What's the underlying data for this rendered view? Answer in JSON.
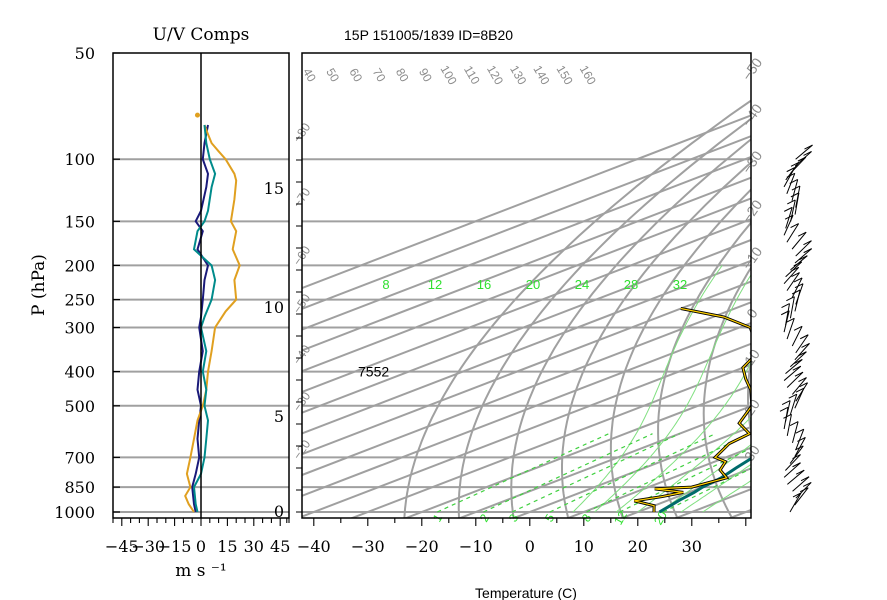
{
  "chart_data": [
    {
      "type": "line",
      "title": "U/V Comps",
      "xlabel": "m s ⁻¹",
      "ylabel": "P (hPa)",
      "xlim": [
        -50,
        50
      ],
      "x_ticks": [
        "−45",
        "−30",
        "−15",
        "0",
        "15",
        "30",
        "45"
      ],
      "x_tick_values": [
        -45,
        -30,
        -15,
        0,
        15,
        30,
        45
      ],
      "y_ticks": [
        "50",
        "100",
        "150",
        "200",
        "250",
        "300",
        "400",
        "500",
        "700",
        "850",
        "1000"
      ],
      "y_tick_values": [
        50,
        100,
        150,
        200,
        250,
        300,
        400,
        500,
        700,
        850,
        1000
      ],
      "y_scale": "log",
      "ylim": [
        1000,
        50
      ],
      "grid": true,
      "series": [
        {
          "color": "#1a1a7a",
          "points": [
            [
              -3,
              1000
            ],
            [
              -4,
              950
            ],
            [
              -5,
              850
            ],
            [
              -3,
              780
            ],
            [
              -1,
              700
            ],
            [
              -2,
              620
            ],
            [
              -1,
              550
            ],
            [
              0,
              500
            ],
            [
              -2,
              450
            ],
            [
              -1,
              400
            ],
            [
              1,
              350
            ],
            [
              -1,
              300
            ],
            [
              0,
              280
            ],
            [
              1,
              250
            ],
            [
              2,
              220
            ],
            [
              4,
              200
            ],
            [
              -2,
              180
            ],
            [
              1,
              160
            ],
            [
              -3,
              150
            ],
            [
              0,
              140
            ],
            [
              3,
              120
            ],
            [
              4,
              110
            ],
            [
              1,
              100
            ],
            [
              2,
              90
            ],
            [
              4,
              80
            ]
          ]
        },
        {
          "color": "#e0a020",
          "points": [
            [
              -4,
              1000
            ],
            [
              -7,
              950
            ],
            [
              -9,
              900
            ],
            [
              -6,
              850
            ],
            [
              -8,
              780
            ],
            [
              -6,
              700
            ],
            [
              -4,
              620
            ],
            [
              -2,
              550
            ],
            [
              1,
              500
            ],
            [
              3,
              450
            ],
            [
              4,
              400
            ],
            [
              6,
              350
            ],
            [
              8,
              300
            ],
            [
              14,
              270
            ],
            [
              20,
              250
            ],
            [
              19,
              220
            ],
            [
              22,
              200
            ],
            [
              18,
              180
            ],
            [
              20,
              160
            ],
            [
              17,
              150
            ],
            [
              19,
              130
            ],
            [
              20,
              115
            ],
            [
              19,
              110
            ],
            [
              14,
              100
            ],
            [
              10,
              95
            ],
            [
              6,
              90
            ],
            [
              4,
              85
            ],
            [
              2,
              80
            ]
          ]
        },
        {
          "color": "#008b8b",
          "points": [
            [
              -2,
              1000
            ],
            [
              -3,
              950
            ],
            [
              -4,
              850
            ],
            [
              0,
              780
            ],
            [
              2,
              700
            ],
            [
              3,
              620
            ],
            [
              4,
              550
            ],
            [
              2,
              500
            ],
            [
              3,
              450
            ],
            [
              1,
              400
            ],
            [
              3,
              350
            ],
            [
              0,
              300
            ],
            [
              2,
              280
            ],
            [
              6,
              250
            ],
            [
              8,
              220
            ],
            [
              6,
              200
            ],
            [
              -4,
              180
            ],
            [
              -2,
              160
            ],
            [
              2,
              150
            ],
            [
              4,
              140
            ],
            [
              6,
              120
            ],
            [
              8,
              110
            ],
            [
              5,
              100
            ],
            [
              3,
              90
            ],
            [
              2,
              80
            ]
          ]
        }
      ]
    },
    {
      "type": "line",
      "title": "15P 151005/1839 ID=8B20",
      "xlabel": "Temperature (C)",
      "xlim": [
        -45,
        40
      ],
      "x_ticks": [
        "−40",
        "−30",
        "−20",
        "−10",
        "0",
        "10",
        "20",
        "30"
      ],
      "x_tick_values": [
        -40,
        -30,
        -20,
        -10,
        0,
        10,
        20,
        30
      ],
      "y_ticks": [
        "0",
        "5",
        "10",
        "15"
      ],
      "y_tick_values": [
        0,
        5,
        10,
        15
      ],
      "isotherm_labels": [
        "−50",
        "−40",
        "−30",
        "−20",
        "−10",
        "0",
        "10",
        "20",
        "30"
      ],
      "isotherm_values": [
        -50,
        -40,
        -30,
        -20,
        -10,
        0,
        10,
        20,
        30
      ],
      "theta_labels": [
        "40",
        "50",
        "60",
        "70",
        "80",
        "90",
        "100",
        "110",
        "120",
        "130",
        "140",
        "150",
        "160"
      ],
      "theta_values": [
        40,
        50,
        60,
        70,
        80,
        90,
        100,
        110,
        120,
        130,
        140,
        150,
        160
      ],
      "moist_labels": [
        "8",
        "12",
        "16",
        "20",
        "24",
        "28",
        "32"
      ],
      "moist_values": [
        8,
        12,
        16,
        20,
        24,
        28,
        32
      ],
      "mixing_labels": [
        "1",
        "2",
        "3",
        "5",
        "8",
        "12",
        "20"
      ],
      "mixing_values": [
        1,
        2,
        3,
        5,
        8,
        12,
        20
      ],
      "left_labels": [
        "−80",
        "−70",
        "−60",
        "−50",
        "−40",
        "−30",
        "−20"
      ],
      "annotation": "7552",
      "annotation_pos": {
        "temperature": -30,
        "pressure": 400
      },
      "grid": true,
      "series": [
        {
          "color": "#006b6b",
          "points": [
            [
              24,
              1000
            ],
            [
              23,
              960
            ],
            [
              22,
              925
            ],
            [
              21,
              880
            ],
            [
              20,
              850
            ],
            [
              19,
              800
            ],
            [
              17,
              750
            ],
            [
              15,
              700
            ],
            [
              13,
              650
            ],
            [
              10,
              600
            ],
            [
              7,
              550
            ],
            [
              4,
              500
            ],
            [
              0,
              450
            ],
            [
              -4,
              400
            ],
            [
              -8,
              350
            ],
            [
              -13,
              300
            ],
            [
              -18,
              270
            ],
            [
              -22,
              250
            ],
            [
              -27,
              220
            ],
            [
              -32,
              200
            ],
            [
              -40,
              180
            ],
            [
              -47,
              165
            ],
            [
              -53,
              150
            ],
            [
              -60,
              140
            ],
            [
              -67,
              130
            ],
            [
              -75,
              115
            ],
            [
              -80,
              105
            ]
          ]
        },
        {
          "color": "#000000",
          "points": [
            [
              23,
              1000
            ],
            [
              20,
              960
            ],
            [
              14,
              930
            ],
            [
              17,
              905
            ],
            [
              19,
              880
            ],
            [
              12,
              860
            ],
            [
              18,
              850
            ],
            [
              20,
              800
            ],
            [
              15,
              760
            ],
            [
              12,
              720
            ],
            [
              8,
              700
            ],
            [
              4,
              640
            ],
            [
              3,
              600
            ],
            [
              -4,
              560
            ],
            [
              -10,
              500
            ],
            [
              -18,
              450
            ],
            [
              -24,
              420
            ],
            [
              -30,
              390
            ],
            [
              -35,
              350
            ],
            [
              -40,
              330
            ],
            [
              -48,
              300
            ],
            [
              -58,
              280
            ],
            [
              -70,
              265
            ]
          ]
        },
        {
          "color": "#ffd000",
          "points": [
            [
              23,
              1000
            ],
            [
              20,
              960
            ],
            [
              14,
              930
            ],
            [
              17,
              905
            ],
            [
              19,
              880
            ],
            [
              12,
              860
            ],
            [
              18,
              850
            ],
            [
              20,
              800
            ],
            [
              15,
              760
            ],
            [
              12,
              720
            ],
            [
              8,
              700
            ],
            [
              4,
              640
            ],
            [
              3,
              600
            ],
            [
              -4,
              560
            ],
            [
              -10,
              500
            ],
            [
              -18,
              450
            ],
            [
              -24,
              420
            ],
            [
              -30,
              390
            ],
            [
              -35,
              350
            ],
            [
              -40,
              330
            ],
            [
              -48,
              300
            ],
            [
              -58,
              280
            ],
            [
              -70,
              265
            ]
          ]
        }
      ]
    }
  ],
  "wind_barbs": {
    "pressure_from": 1000,
    "pressure_to": 100,
    "count": 52
  }
}
